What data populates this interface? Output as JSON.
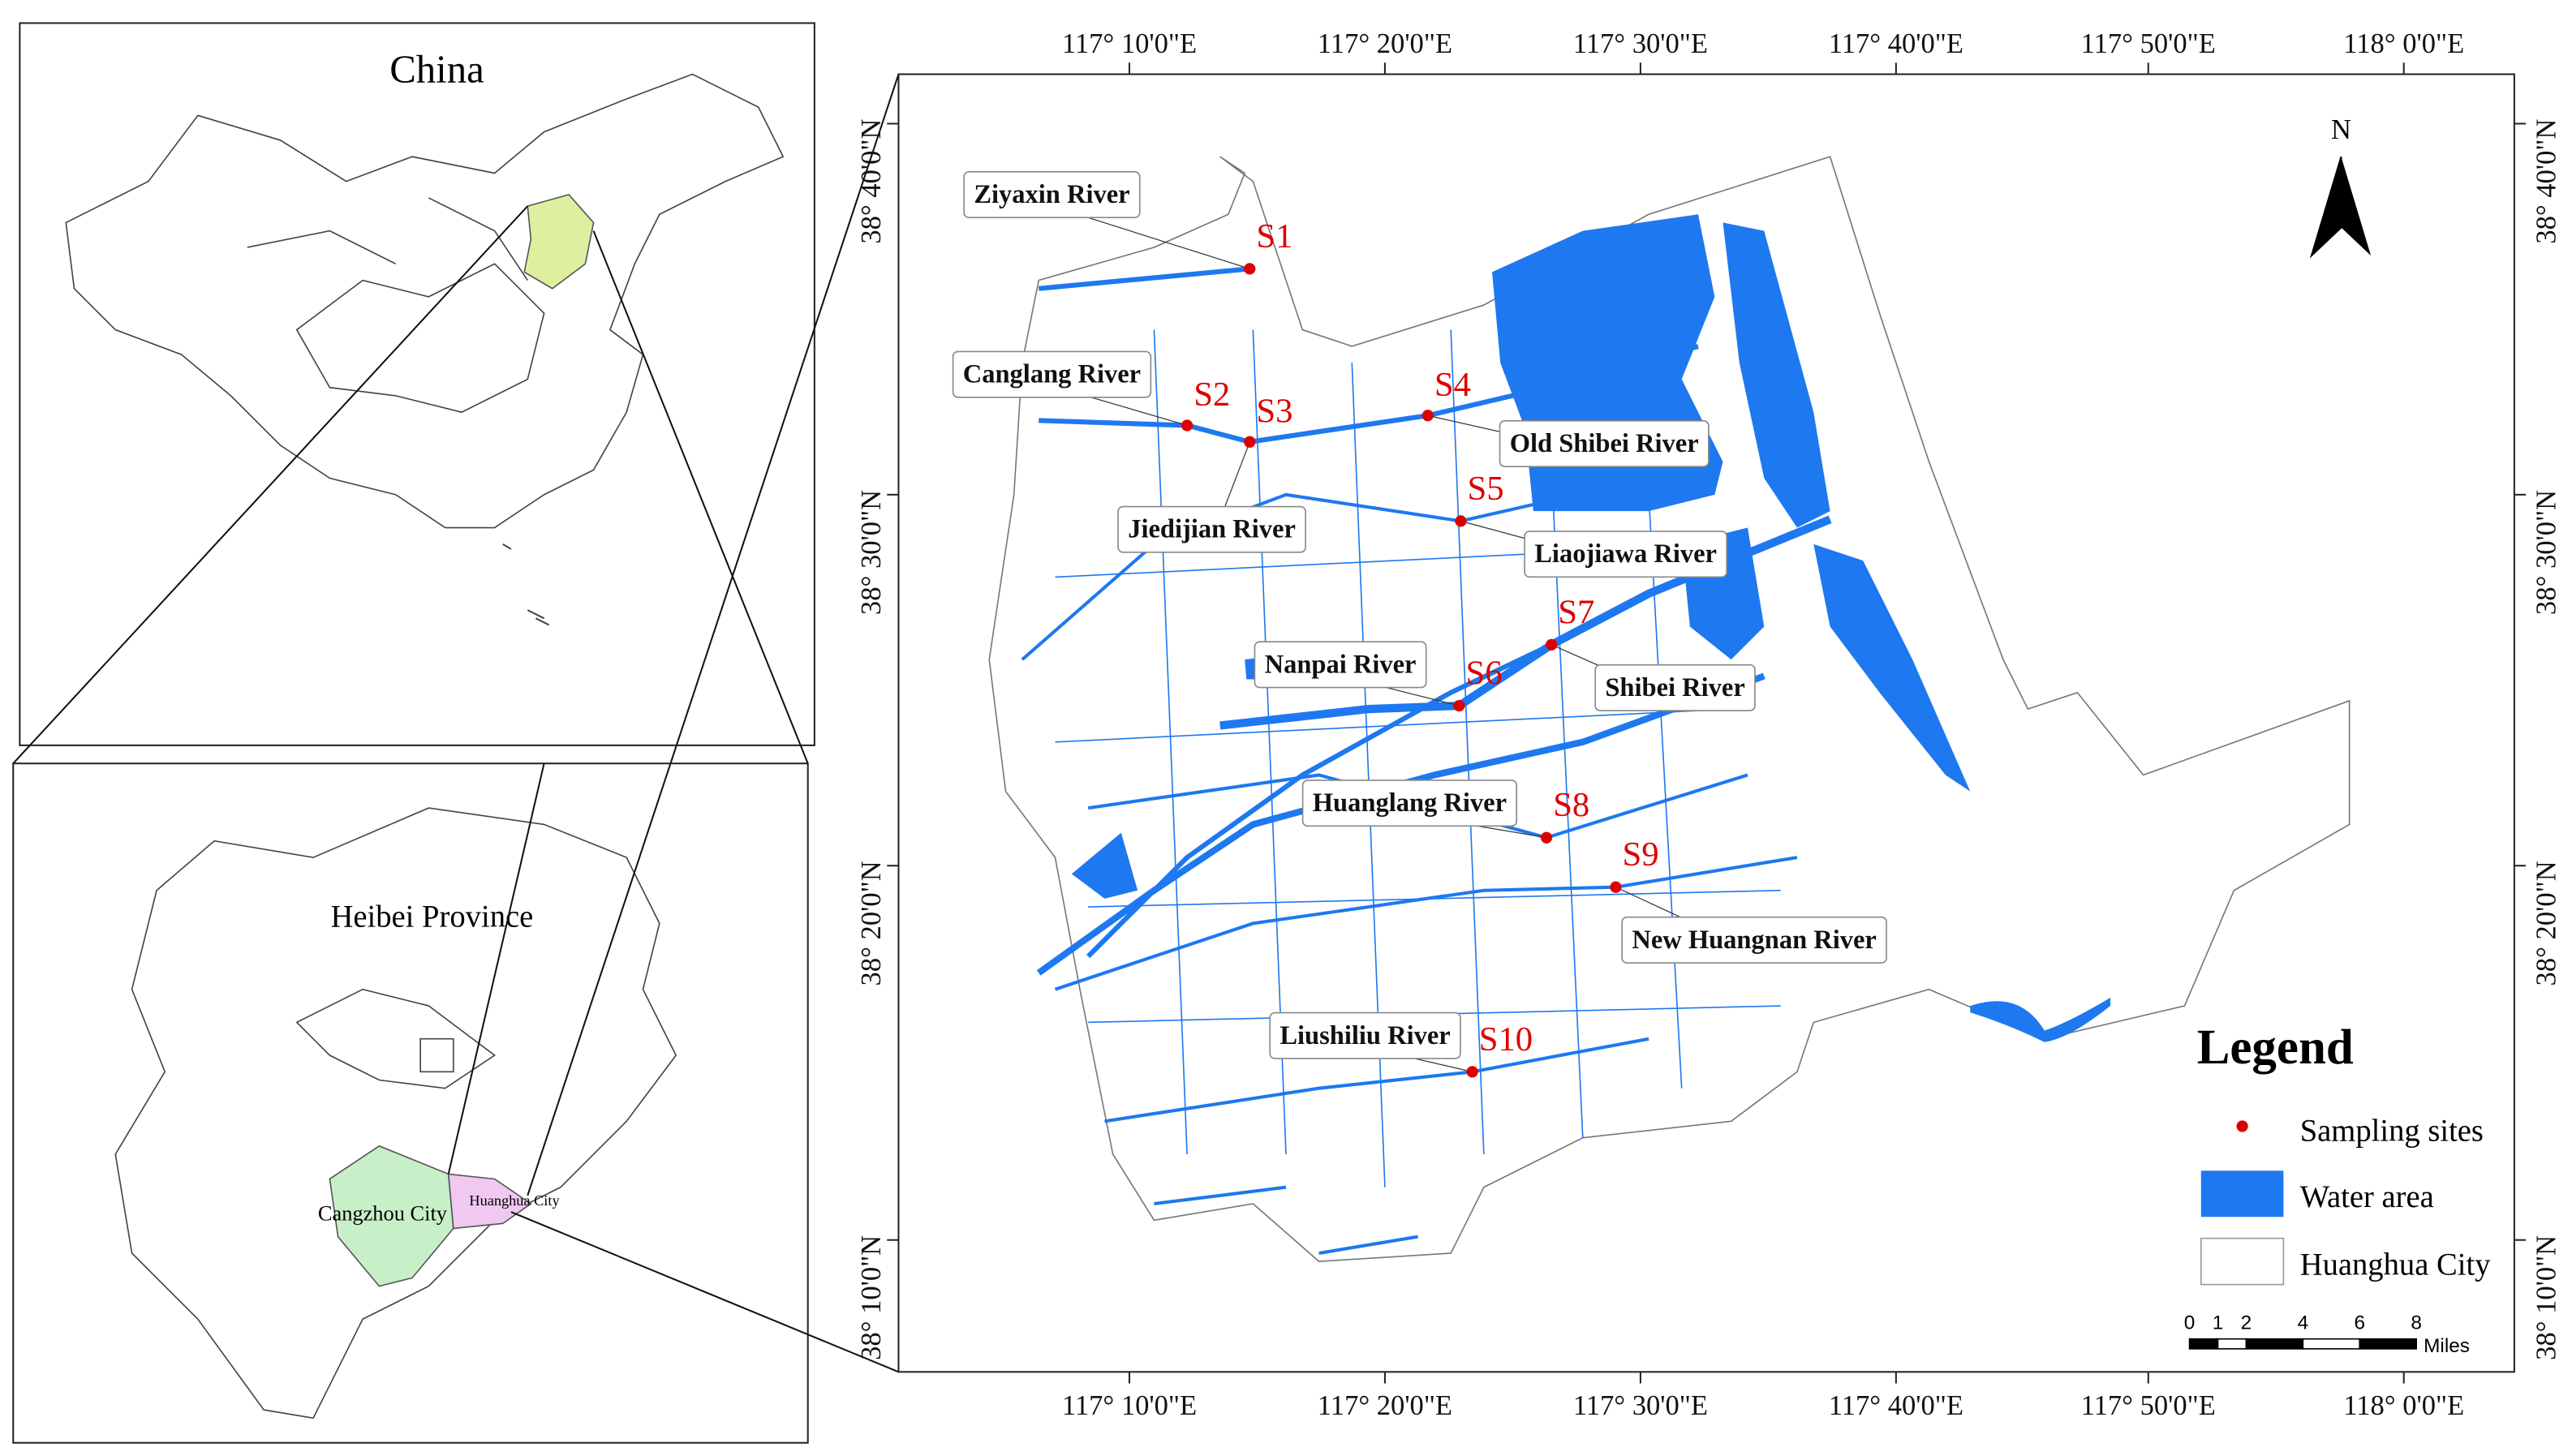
{
  "insets": {
    "china_title": "China",
    "province_title": "Heibei Province",
    "cangzhou": "Cangzhou City",
    "huanghua": "Huanghua City"
  },
  "map": {
    "lon_labels": [
      "117°  10'0\"E",
      "117°  20'0\"E",
      "117°  30'0\"E",
      "117°  40'0\"E",
      "117°  50'0\"E",
      "118°  0'0\"E"
    ],
    "lat_labels": [
      "38°  40'0\"N",
      "38°  30'0\"N",
      "38°  20'0\"N",
      "38°  10'0\"N"
    ],
    "north": "N",
    "sites": [
      {
        "label": "S1",
        "river": "Ziyaxin River"
      },
      {
        "label": "S2",
        "river": "Canglang River"
      },
      {
        "label": "S3",
        "river": "Jiedijian River"
      },
      {
        "label": "S4",
        "river": "Old Shibei River"
      },
      {
        "label": "S5",
        "river": "Liaojiawa River"
      },
      {
        "label": "S6",
        "river": "Nanpai River"
      },
      {
        "label": "S7",
        "river": "Shibei River"
      },
      {
        "label": "S8",
        "river": "Huanglang River"
      },
      {
        "label": "S9",
        "river": "New Huangnan River"
      },
      {
        "label": "S10",
        "river": "Liushiliu River"
      }
    ],
    "legend": {
      "title": "Legend",
      "items": [
        "Sampling sites",
        "Water area",
        "Huanghua City"
      ]
    },
    "scale_bar": {
      "ticks": [
        0,
        1,
        2,
        4,
        6,
        8
      ],
      "unit": "Miles"
    }
  }
}
